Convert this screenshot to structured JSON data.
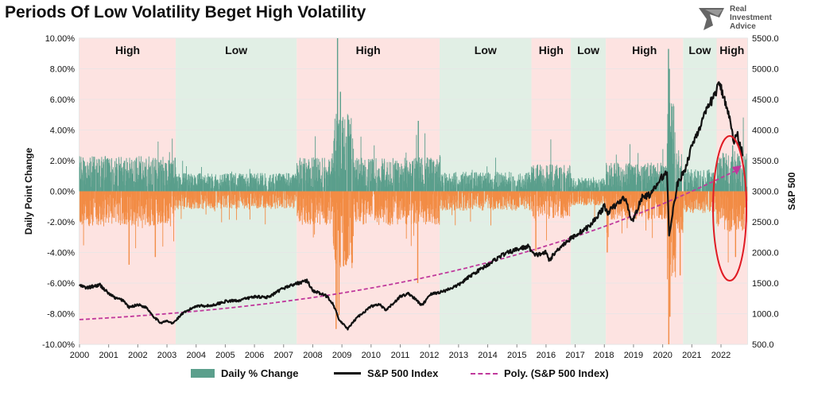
{
  "chart_data": {
    "type": "bar",
    "title": "Periods Of Low Volatility Beget High Volatility",
    "ylabel": "Daily Point Change",
    "y2label": "S&P 500",
    "ylim": [
      -10,
      10
    ],
    "y2lim": [
      500,
      5500
    ],
    "xlim": [
      2000,
      2022.9
    ],
    "x_ticks": [
      "2000",
      "2001",
      "2002",
      "2003",
      "2004",
      "2005",
      "2006",
      "2007",
      "2008",
      "2009",
      "2010",
      "2011",
      "2012",
      "2013",
      "2014",
      "2015",
      "2016",
      "2017",
      "2018",
      "2019",
      "2020",
      "2021",
      "2022"
    ],
    "y_ticks": [
      "10.00%",
      "8.00%",
      "6.00%",
      "4.00%",
      "2.00%",
      "0.00%",
      "-2.00%",
      "-4.00%",
      "-6.00%",
      "-8.00%",
      "-10.00%"
    ],
    "y2_ticks": [
      "5500.0",
      "5000.0",
      "4500.0",
      "4000.0",
      "3500.0",
      "3000.0",
      "2500.0",
      "2000.0",
      "1500.0",
      "1000.0",
      "500.0"
    ],
    "regimes": [
      {
        "label": "High",
        "start": 2000.0,
        "end": 2003.3,
        "kind": "high"
      },
      {
        "label": "Low",
        "start": 2003.3,
        "end": 2007.45,
        "kind": "low"
      },
      {
        "label": "High",
        "start": 2007.45,
        "end": 2012.35,
        "kind": "high"
      },
      {
        "label": "Low",
        "start": 2012.35,
        "end": 2015.5,
        "kind": "low"
      },
      {
        "label": "High",
        "start": 2015.5,
        "end": 2016.85,
        "kind": "high"
      },
      {
        "label": "Low",
        "start": 2016.85,
        "end": 2018.05,
        "kind": "low"
      },
      {
        "label": "High",
        "start": 2018.05,
        "end": 2020.7,
        "kind": "high"
      },
      {
        "label": "Low",
        "start": 2020.7,
        "end": 2021.85,
        "kind": "low"
      },
      {
        "label": "High",
        "start": 2021.85,
        "end": 2022.9,
        "kind": "high"
      }
    ],
    "series": [
      {
        "name": "Daily % Change",
        "type": "bar",
        "color_pos": "#5b9f8c",
        "color_neg": "#f28c45"
      },
      {
        "name": "S&P 500 Index",
        "type": "line",
        "axis": "right",
        "color": "#111111",
        "x": [
          2000.0,
          2000.25,
          2000.5,
          2000.7,
          2001.0,
          2001.25,
          2001.5,
          2001.7,
          2002.0,
          2002.3,
          2002.55,
          2002.78,
          2003.0,
          2003.2,
          2003.5,
          2004.0,
          2004.5,
          2005.0,
          2005.5,
          2006.0,
          2006.5,
          2007.0,
          2007.5,
          2007.8,
          2008.0,
          2008.3,
          2008.5,
          2008.7,
          2008.9,
          2009.0,
          2009.2,
          2009.5,
          2010.0,
          2010.3,
          2010.5,
          2011.0,
          2011.3,
          2011.6,
          2011.75,
          2012.0,
          2012.5,
          2013.0,
          2013.5,
          2014.0,
          2014.5,
          2015.0,
          2015.4,
          2015.6,
          2016.0,
          2016.1,
          2016.5,
          2017.0,
          2017.5,
          2018.0,
          2018.1,
          2018.7,
          2018.95,
          2019.3,
          2019.6,
          2020.0,
          2020.15,
          2020.22,
          2020.5,
          2020.8,
          2021.0,
          2021.5,
          2021.95,
          2022.2,
          2022.45,
          2022.55,
          2022.75
        ],
        "y": [
          1460,
          1420,
          1450,
          1470,
          1330,
          1250,
          1220,
          1100,
          1150,
          1100,
          950,
          850,
          880,
          840,
          990,
          1130,
          1130,
          1200,
          1220,
          1280,
          1270,
          1420,
          1500,
          1540,
          1380,
          1320,
          1280,
          1160,
          900,
          850,
          750,
          930,
          1120,
          1150,
          1050,
          1280,
          1330,
          1200,
          1130,
          1310,
          1370,
          1470,
          1650,
          1800,
          1960,
          2050,
          2100,
          1950,
          2000,
          1870,
          2100,
          2280,
          2430,
          2750,
          2650,
          2900,
          2500,
          2900,
          2950,
          3250,
          3300,
          2300,
          3100,
          3400,
          3750,
          4300,
          4750,
          4400,
          3800,
          3950,
          3600
        ]
      },
      {
        "name": "Poly. (S&P 500 Index)",
        "type": "trend",
        "axis": "right",
        "color": "#c0399c",
        "coef": [
          904,
          26.5,
          1.6,
          0.09
        ]
      }
    ],
    "annotation": "red-ellipse-2022"
  },
  "legend": {
    "daily": "Daily % Change",
    "sp": "S&P 500 Index",
    "poly": "Poly. (S&P 500 Index)"
  },
  "logo": {
    "line1": "Real",
    "line2": "Investment",
    "line3": "Advice"
  }
}
